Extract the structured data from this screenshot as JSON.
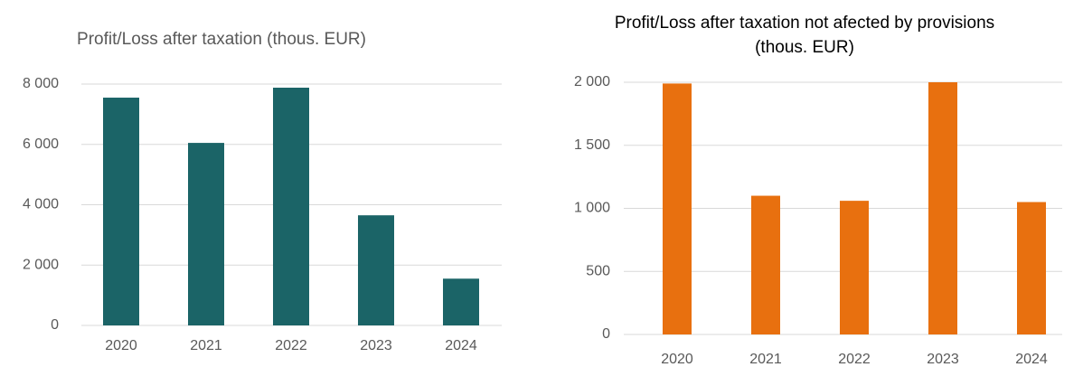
{
  "chart_data": [
    {
      "type": "bar",
      "title": "Profit/Loss after taxation (thous. EUR)",
      "categories": [
        "2020",
        "2021",
        "2022",
        "2023",
        "2024"
      ],
      "values": [
        7550,
        6050,
        7880,
        3650,
        1550
      ],
      "color": "#1b6467",
      "ylim": [
        0,
        8000
      ],
      "yticks": [
        0,
        {
          "value": 2000,
          "label": "2 000"
        },
        {
          "value": 4000,
          "label": "4 000"
        },
        {
          "value": 6000,
          "label": "6 000"
        },
        {
          "value": 8000,
          "label": "8 000"
        }
      ],
      "grid": true
    },
    {
      "type": "bar",
      "title": "Profit/Loss after taxation not afected by provisions (thous. EUR)",
      "categories": [
        "2020",
        "2021",
        "2022",
        "2023",
        "2024"
      ],
      "values": [
        1990,
        1100,
        1060,
        2000,
        1050
      ],
      "color": "#e8700f",
      "ylim": [
        0,
        2000
      ],
      "yticks": [
        0,
        500,
        {
          "value": 1000,
          "label": "1 000"
        },
        {
          "value": 1500,
          "label": "1 500"
        },
        {
          "value": 2000,
          "label": "2 000"
        }
      ],
      "grid": true
    }
  ]
}
